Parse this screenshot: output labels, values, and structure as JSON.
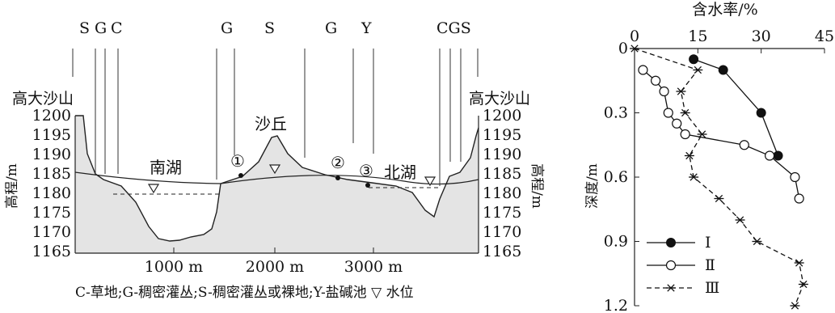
{
  "profile": {
    "top_letters": [
      "S",
      "G",
      "C",
      "G",
      "S",
      "G",
      "Y",
      "CGS"
    ],
    "left_mountain_label": "高大沙山",
    "right_mountain_label": "高大沙山",
    "dune_label": "沙丘",
    "south_lake_label": "南湖",
    "north_lake_label": "北湖",
    "left_axis_label": "高程/m",
    "right_axis_label": "高程/m",
    "y_ticks": [
      "1200",
      "1195",
      "1190",
      "1185",
      "1180",
      "1175",
      "1170",
      "1165"
    ],
    "x_ticks": [
      "1000 m",
      "2000 m",
      "3000 m"
    ],
    "point_labels": [
      "①",
      "②",
      "③"
    ],
    "legend_text": "C-草地;G-稠密灌丛;S-稠密灌丛或裸地;Y-盐碱池 ▽ 水位"
  },
  "chart_data": {
    "type": "line",
    "title": "含水率/%",
    "xlabel": "含水率/%",
    "ylabel": "深度/m",
    "xlim": [
      0,
      45
    ],
    "ylim": [
      0,
      1.2
    ],
    "x_ticks": [
      "0",
      "15",
      "30",
      "45"
    ],
    "y_ticks": [
      "0",
      "0.3",
      "0.6",
      "0.9",
      "1.2"
    ],
    "series": [
      {
        "name": "Ⅰ",
        "marker": "filled-circle",
        "line": "solid",
        "points": [
          [
            14,
            0.05
          ],
          [
            21,
            0.1
          ],
          [
            30,
            0.3
          ],
          [
            34,
            0.5
          ]
        ]
      },
      {
        "name": "Ⅱ",
        "marker": "open-circle",
        "line": "solid",
        "points": [
          [
            2,
            0.1
          ],
          [
            5,
            0.15
          ],
          [
            7,
            0.2
          ],
          [
            8,
            0.3
          ],
          [
            10,
            0.35
          ],
          [
            12,
            0.4
          ],
          [
            26,
            0.45
          ],
          [
            32,
            0.5
          ],
          [
            38,
            0.6
          ],
          [
            39,
            0.7
          ]
        ]
      },
      {
        "name": "Ⅲ",
        "marker": "asterisk",
        "line": "dashed",
        "points": [
          [
            0,
            0
          ],
          [
            15,
            0.1
          ],
          [
            11,
            0.2
          ],
          [
            12,
            0.3
          ],
          [
            16,
            0.4
          ],
          [
            13,
            0.5
          ],
          [
            14,
            0.6
          ],
          [
            20,
            0.7
          ],
          [
            25,
            0.8
          ],
          [
            29,
            0.9
          ],
          [
            39,
            1.0
          ],
          [
            40,
            1.1
          ],
          [
            38,
            1.2
          ]
        ]
      }
    ],
    "legend": "bottom-left"
  }
}
